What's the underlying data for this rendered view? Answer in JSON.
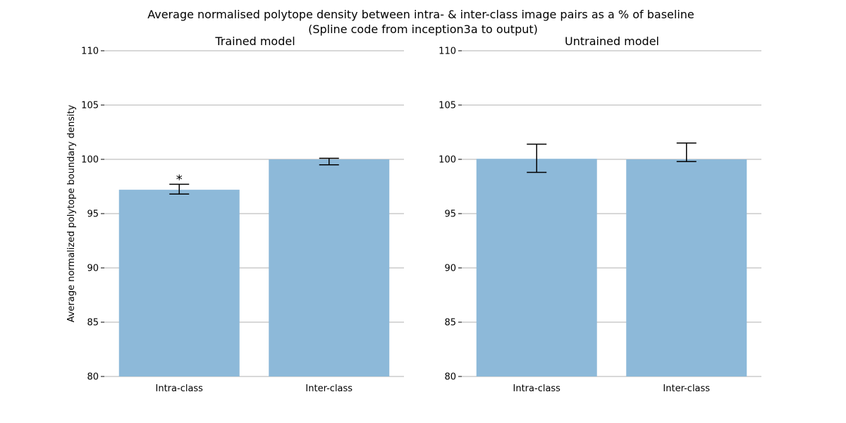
{
  "figure": {
    "suptitle_line1": "Average normalised polytope density between intra- & inter-class image pairs as a % of baseline",
    "suptitle_line2": "(Spline code from inception3a to output)",
    "bar_color": "#8db9d9"
  },
  "chart_data": [
    {
      "type": "bar",
      "title": "Trained model",
      "ylabel": "Average normalized polytope boundary density",
      "xlabel": "",
      "categories": [
        "Intra-class",
        "Inter-class"
      ],
      "values": [
        97.2,
        100.0
      ],
      "error_low": [
        96.8,
        99.5
      ],
      "error_high": [
        97.7,
        100.1
      ],
      "annotations": [
        "*",
        ""
      ],
      "ylim": [
        80,
        110
      ],
      "yticks": [
        80,
        85,
        90,
        95,
        100,
        105,
        110
      ],
      "grid": true
    },
    {
      "type": "bar",
      "title": "Untrained model",
      "ylabel": "",
      "xlabel": "",
      "categories": [
        "Intra-class",
        "Inter-class"
      ],
      "values": [
        100.05,
        100.0
      ],
      "error_low": [
        98.8,
        99.8
      ],
      "error_high": [
        101.4,
        101.5
      ],
      "annotations": [
        "",
        ""
      ],
      "ylim": [
        80,
        110
      ],
      "yticks": [
        80,
        85,
        90,
        95,
        100,
        105,
        110
      ],
      "grid": true
    }
  ]
}
